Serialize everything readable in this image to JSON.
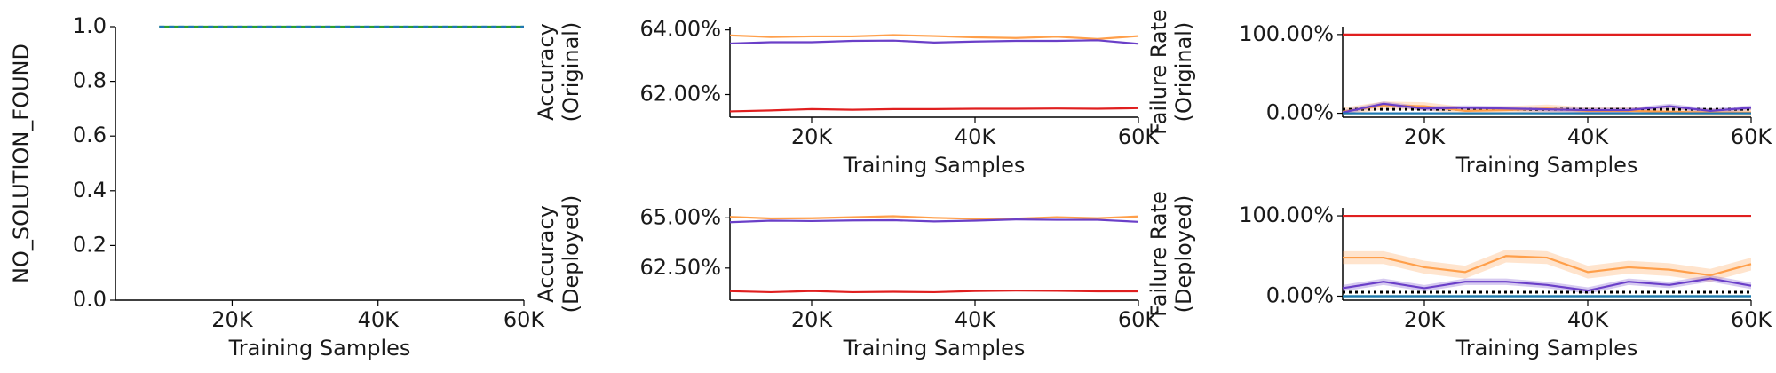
{
  "chart_data": [
    {
      "type": "line",
      "ylabel": "NO_SOLUTION_FOUND",
      "xlabel": "Training Samples",
      "xticks": [
        "20K",
        "40K",
        "60K"
      ],
      "yticks": [
        "0.0",
        "0.2",
        "0.4",
        "0.6",
        "0.8",
        "1.0"
      ],
      "x": [
        10000,
        15000,
        20000,
        25000,
        30000,
        35000,
        40000,
        45000,
        50000,
        55000,
        60000
      ],
      "xlim": [
        4000,
        60000
      ],
      "ylim": [
        0,
        1
      ],
      "series": [
        {
          "color": "#2ca02c",
          "values": [
            1,
            1,
            1,
            1,
            1,
            1,
            1,
            1,
            1,
            1,
            1
          ]
        },
        {
          "color": "#1f77b4",
          "dashed": true,
          "values": [
            1,
            1,
            1,
            1,
            1,
            1,
            1,
            1,
            1,
            1,
            1
          ]
        }
      ]
    },
    {
      "type": "line",
      "ylabel": "Accuracy\n(Original)",
      "xlabel": "Training Samples",
      "xticks": [
        "20K",
        "40K",
        "60K"
      ],
      "yticks": [
        "62.00%",
        "64.00%"
      ],
      "x": [
        10000,
        15000,
        20000,
        25000,
        30000,
        35000,
        40000,
        45000,
        50000,
        55000,
        60000
      ],
      "xlim": [
        10000,
        60000
      ],
      "ylim": [
        61.3,
        64.1
      ],
      "series": [
        {
          "color": "#ff9f4a",
          "values": [
            63.83,
            63.78,
            63.8,
            63.8,
            63.84,
            63.81,
            63.77,
            63.75,
            63.79,
            63.72,
            63.81
          ]
        },
        {
          "color": "#6a3fc8",
          "values": [
            63.58,
            63.62,
            63.62,
            63.66,
            63.67,
            63.61,
            63.64,
            63.66,
            63.66,
            63.68,
            63.57
          ]
        },
        {
          "color": "#e01f1f",
          "values": [
            61.48,
            61.51,
            61.55,
            61.53,
            61.55,
            61.55,
            61.56,
            61.56,
            61.57,
            61.56,
            61.58
          ]
        }
      ]
    },
    {
      "type": "line",
      "ylabel": "Failure Rate\n(Original)",
      "xlabel": "Training Samples",
      "xticks": [
        "20K",
        "40K",
        "60K"
      ],
      "yticks": [
        "0.00%",
        "100.00%"
      ],
      "x": [
        10000,
        15000,
        20000,
        25000,
        30000,
        35000,
        40000,
        45000,
        50000,
        55000,
        60000
      ],
      "xlim": [
        10000,
        60000
      ],
      "ylim": [
        -5,
        110
      ],
      "reference_line": 5,
      "series": [
        {
          "color": "#e01f1f",
          "values": [
            100,
            100,
            100,
            100,
            100,
            100,
            100,
            100,
            100,
            100,
            100
          ]
        },
        {
          "color": "#ff9f4a",
          "band": 5,
          "values": [
            2,
            10,
            9,
            3,
            4,
            6,
            3,
            3,
            2,
            1,
            1
          ]
        },
        {
          "color": "#6a3fc8",
          "band": 3,
          "values": [
            1,
            12,
            6,
            7,
            6,
            5,
            4,
            4,
            9,
            3,
            7
          ]
        },
        {
          "color": "#2ca02c",
          "values": [
            0,
            0,
            0,
            0,
            0,
            0,
            0,
            0,
            0,
            0,
            0
          ]
        },
        {
          "color": "#1f77b4",
          "values": [
            0,
            0,
            0,
            0,
            0,
            0,
            0,
            0,
            0,
            0,
            0
          ]
        }
      ]
    },
    {
      "type": "line",
      "ylabel": "Accuracy\n(Deployed)",
      "xlabel": "Training Samples",
      "xticks": [
        "20K",
        "40K",
        "60K"
      ],
      "yticks": [
        "62.50%",
        "65.00%"
      ],
      "x": [
        10000,
        15000,
        20000,
        25000,
        30000,
        35000,
        40000,
        45000,
        50000,
        55000,
        60000
      ],
      "xlim": [
        10000,
        60000
      ],
      "ylim": [
        60.9,
        65.5
      ],
      "series": [
        {
          "color": "#ff9f4a",
          "values": [
            65.05,
            64.97,
            64.98,
            65.03,
            65.08,
            65.0,
            64.95,
            64.96,
            65.03,
            64.98,
            65.07
          ]
        },
        {
          "color": "#6a3fc8",
          "values": [
            64.78,
            64.86,
            64.84,
            64.87,
            64.88,
            64.82,
            64.86,
            64.92,
            64.9,
            64.9,
            64.8
          ]
        },
        {
          "color": "#e01f1f",
          "values": [
            61.35,
            61.3,
            61.36,
            61.3,
            61.32,
            61.3,
            61.36,
            61.38,
            61.37,
            61.34,
            61.34
          ]
        }
      ]
    },
    {
      "type": "line",
      "ylabel": "Failure Rate\n(Deployed)",
      "xlabel": "Training Samples",
      "xticks": [
        "20K",
        "40K",
        "60K"
      ],
      "yticks": [
        "0.00%",
        "100.00%"
      ],
      "x": [
        10000,
        15000,
        20000,
        25000,
        30000,
        35000,
        40000,
        45000,
        50000,
        55000,
        60000
      ],
      "xlim": [
        10000,
        60000
      ],
      "ylim": [
        -5,
        110
      ],
      "reference_line": 5,
      "series": [
        {
          "color": "#e01f1f",
          "values": [
            100,
            100,
            100,
            100,
            100,
            100,
            100,
            100,
            100,
            100,
            100
          ]
        },
        {
          "color": "#ff9f4a",
          "band": 8,
          "values": [
            48,
            48,
            36,
            30,
            50,
            48,
            30,
            36,
            33,
            26,
            40
          ]
        },
        {
          "color": "#6a3fc8",
          "band": 4,
          "values": [
            10,
            18,
            10,
            18,
            18,
            14,
            7,
            18,
            14,
            22,
            13
          ]
        },
        {
          "color": "#2ca02c",
          "values": [
            0,
            0,
            0,
            0,
            0,
            0,
            0,
            0,
            0,
            0,
            0
          ]
        },
        {
          "color": "#1f77b4",
          "values": [
            0,
            0,
            0,
            0,
            0,
            0,
            0,
            0,
            0,
            0,
            0
          ]
        }
      ]
    }
  ]
}
